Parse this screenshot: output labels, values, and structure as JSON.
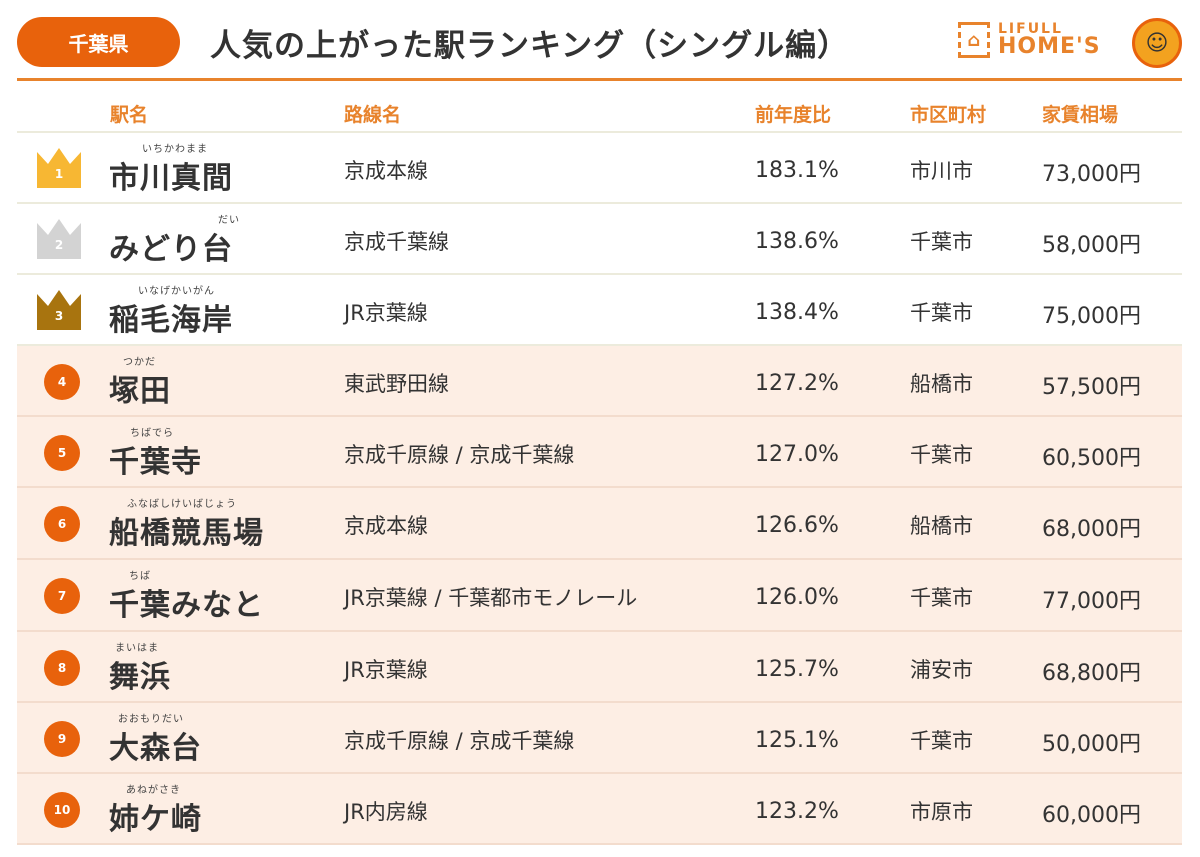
{
  "header": {
    "prefecture": "千葉県",
    "title": "人気の上がった駅ランキング（シングル編）",
    "logo_line1": "LIFULL",
    "logo_line2": "HOME'S"
  },
  "columns": {
    "station": "駅名",
    "line": "路線名",
    "rate": "前年度比",
    "city": "市区町村",
    "rent": "家賃相場"
  },
  "colors": {
    "accent": "#e8620c",
    "gold": "#f7b733",
    "silver": "#d3d3d3",
    "bronze": "#a8740f",
    "row_pink": "#fdeee4"
  },
  "rows": [
    {
      "rank": "1",
      "furigana": "いちかわまま",
      "name": "市川真間",
      "line": "京成本線",
      "rate": "183.1%",
      "city": "市川市",
      "rent": "73,000円"
    },
    {
      "rank": "2",
      "furigana": "だい",
      "name": "みどり台",
      "line": "京成千葉線",
      "rate": "138.6%",
      "city": "千葉市",
      "rent": "58,000円"
    },
    {
      "rank": "3",
      "furigana": "いなげかいがん",
      "name": "稲毛海岸",
      "line": "JR京葉線",
      "rate": "138.4%",
      "city": "千葉市",
      "rent": "75,000円"
    },
    {
      "rank": "4",
      "furigana": "つかだ",
      "name": "塚田",
      "line": "東武野田線",
      "rate": "127.2%",
      "city": "船橋市",
      "rent": "57,500円"
    },
    {
      "rank": "5",
      "furigana": "ちばでら",
      "name": "千葉寺",
      "line": "京成千原線 / 京成千葉線",
      "rate": "127.0%",
      "city": "千葉市",
      "rent": "60,500円"
    },
    {
      "rank": "6",
      "furigana": "ふなばしけいばじょう",
      "name": "船橋競馬場",
      "line": "京成本線",
      "rate": "126.6%",
      "city": "船橋市",
      "rent": "68,000円"
    },
    {
      "rank": "7",
      "furigana": "ちば",
      "name": "千葉みなと",
      "line": "JR京葉線 / 千葉都市モノレール",
      "rate": "126.0%",
      "city": "千葉市",
      "rent": "77,000円"
    },
    {
      "rank": "8",
      "furigana": "まいはま",
      "name": "舞浜",
      "line": "JR京葉線",
      "rate": "125.7%",
      "city": "浦安市",
      "rent": "68,800円"
    },
    {
      "rank": "9",
      "furigana": "おおもりだい",
      "name": "大森台",
      "line": "京成千原線 / 京成千葉線",
      "rate": "125.1%",
      "city": "千葉市",
      "rent": "50,000円"
    },
    {
      "rank": "10",
      "furigana": "あねがさき",
      "name": "姉ケ崎",
      "line": "JR内房線",
      "rate": "123.2%",
      "city": "市原市",
      "rent": "60,000円"
    }
  ]
}
